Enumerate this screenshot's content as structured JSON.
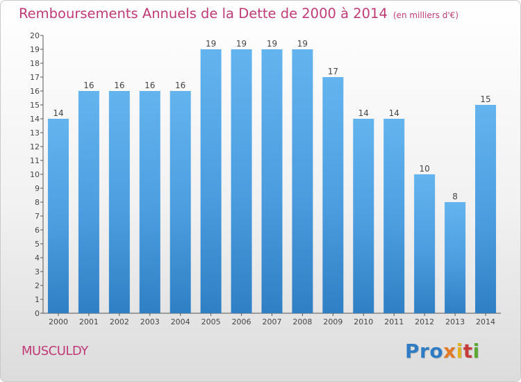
{
  "title": "Remboursements Annuels de la Dette de 2000 à 2014",
  "unit_note": "(en milliers d'€)",
  "commune": "MUSCULDY",
  "logo": {
    "p1": "Pro",
    "p2": "x",
    "p3": "i",
    "p4": "t",
    "p5": "i"
  },
  "colors": {
    "bar": "#4b9ddf",
    "bar_light": "#63b4ee",
    "bar_dark": "#2f7fc4",
    "title": "#c03a78"
  },
  "chart_data": {
    "type": "bar",
    "title": "Remboursements Annuels de la Dette de 2000 à 2014",
    "categories": [
      "2000",
      "2001",
      "2002",
      "2003",
      "2004",
      "2005",
      "2006",
      "2007",
      "2008",
      "2009",
      "2010",
      "2011",
      "2012",
      "2013",
      "2014"
    ],
    "values": [
      14,
      16,
      16,
      16,
      16,
      19,
      19,
      19,
      19,
      17,
      14,
      14,
      10,
      8,
      15
    ],
    "ylim": [
      0,
      20
    ],
    "yticks": [
      0,
      1,
      2,
      3,
      4,
      5,
      6,
      7,
      8,
      9,
      10,
      11,
      12,
      13,
      14,
      15,
      16,
      17,
      18,
      19,
      20
    ],
    "grid": false
  }
}
